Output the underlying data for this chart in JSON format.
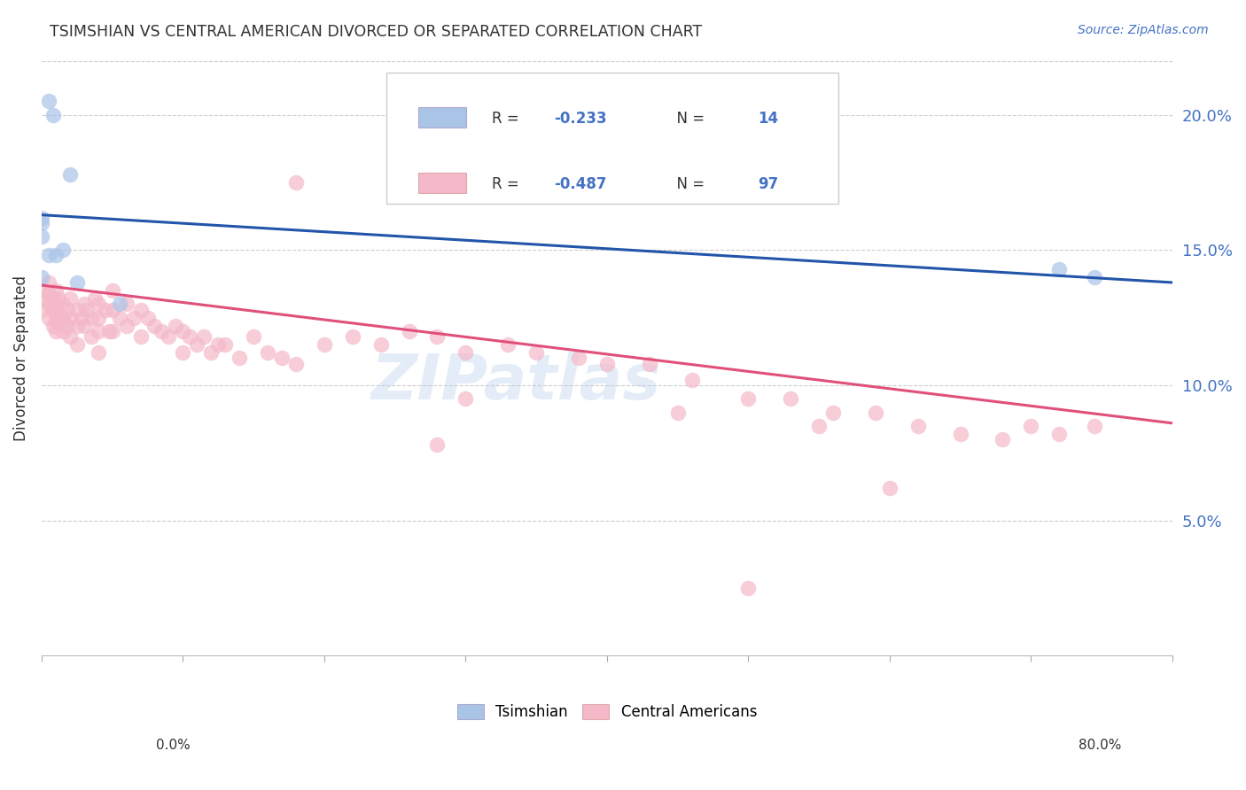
{
  "title": "TSIMSHIAN VS CENTRAL AMERICAN DIVORCED OR SEPARATED CORRELATION CHART",
  "source": "Source: ZipAtlas.com",
  "ylabel": "Divorced or Separated",
  "legend": [
    {
      "label": "Tsimshian",
      "R": "-0.233",
      "N": "14",
      "color": "#aac4e8"
    },
    {
      "label": "Central Americans",
      "R": "-0.487",
      "N": "97",
      "color": "#f4b8c8"
    }
  ],
  "watermark": "ZIPatlas",
  "xlim": [
    0.0,
    0.8
  ],
  "ylim": [
    0.0,
    0.22
  ],
  "yticks": [
    0.05,
    0.1,
    0.15,
    0.2
  ],
  "background_color": "#ffffff",
  "grid_color": "#cccccc",
  "tsimshian_x": [
    0.005,
    0.008,
    0.01,
    0.015,
    0.02,
    0.025,
    0.0,
    0.0,
    0.0,
    0.005,
    0.055,
    0.72,
    0.745,
    0.0
  ],
  "tsimshian_y": [
    0.205,
    0.2,
    0.148,
    0.15,
    0.178,
    0.138,
    0.14,
    0.155,
    0.16,
    0.148,
    0.13,
    0.143,
    0.14,
    0.162
  ],
  "central_x": [
    0.0,
    0.0,
    0.0,
    0.005,
    0.005,
    0.005,
    0.005,
    0.008,
    0.008,
    0.008,
    0.01,
    0.01,
    0.01,
    0.01,
    0.01,
    0.012,
    0.012,
    0.015,
    0.015,
    0.015,
    0.018,
    0.018,
    0.02,
    0.02,
    0.02,
    0.025,
    0.025,
    0.025,
    0.028,
    0.03,
    0.03,
    0.032,
    0.035,
    0.035,
    0.038,
    0.04,
    0.04,
    0.04,
    0.04,
    0.045,
    0.048,
    0.05,
    0.05,
    0.05,
    0.055,
    0.06,
    0.06,
    0.065,
    0.07,
    0.07,
    0.075,
    0.08,
    0.085,
    0.09,
    0.095,
    0.1,
    0.1,
    0.105,
    0.11,
    0.115,
    0.12,
    0.125,
    0.13,
    0.14,
    0.15,
    0.16,
    0.17,
    0.18,
    0.2,
    0.22,
    0.24,
    0.26,
    0.28,
    0.3,
    0.33,
    0.35,
    0.38,
    0.4,
    0.43,
    0.46,
    0.5,
    0.53,
    0.56,
    0.59,
    0.62,
    0.65,
    0.68,
    0.7,
    0.72,
    0.745,
    0.5,
    0.28,
    0.3,
    0.45,
    0.18,
    0.55,
    0.6
  ],
  "central_y": [
    0.135,
    0.132,
    0.128,
    0.138,
    0.134,
    0.13,
    0.125,
    0.132,
    0.128,
    0.122,
    0.135,
    0.13,
    0.127,
    0.124,
    0.12,
    0.132,
    0.125,
    0.13,
    0.125,
    0.12,
    0.128,
    0.122,
    0.132,
    0.125,
    0.118,
    0.128,
    0.122,
    0.115,
    0.125,
    0.13,
    0.122,
    0.128,
    0.125,
    0.118,
    0.132,
    0.13,
    0.125,
    0.12,
    0.112,
    0.128,
    0.12,
    0.135,
    0.128,
    0.12,
    0.125,
    0.13,
    0.122,
    0.125,
    0.128,
    0.118,
    0.125,
    0.122,
    0.12,
    0.118,
    0.122,
    0.12,
    0.112,
    0.118,
    0.115,
    0.118,
    0.112,
    0.115,
    0.115,
    0.11,
    0.118,
    0.112,
    0.11,
    0.108,
    0.115,
    0.118,
    0.115,
    0.12,
    0.118,
    0.112,
    0.115,
    0.112,
    0.11,
    0.108,
    0.108,
    0.102,
    0.095,
    0.095,
    0.09,
    0.09,
    0.085,
    0.082,
    0.08,
    0.085,
    0.082,
    0.085,
    0.025,
    0.078,
    0.095,
    0.09,
    0.175,
    0.085,
    0.062
  ],
  "blue_line_x": [
    0.0,
    0.8
  ],
  "blue_line_y": [
    0.163,
    0.138
  ],
  "pink_line_x": [
    0.0,
    0.8
  ],
  "pink_line_y": [
    0.137,
    0.086
  ],
  "blue_line_color": "#2255aa",
  "pink_line_color": "#e0507a",
  "blue_dot_color": "#aac4e8",
  "pink_dot_color": "#f4b8c8",
  "right_axis_color": "#4472c4",
  "title_color": "#333333",
  "source_color": "#4472c4"
}
